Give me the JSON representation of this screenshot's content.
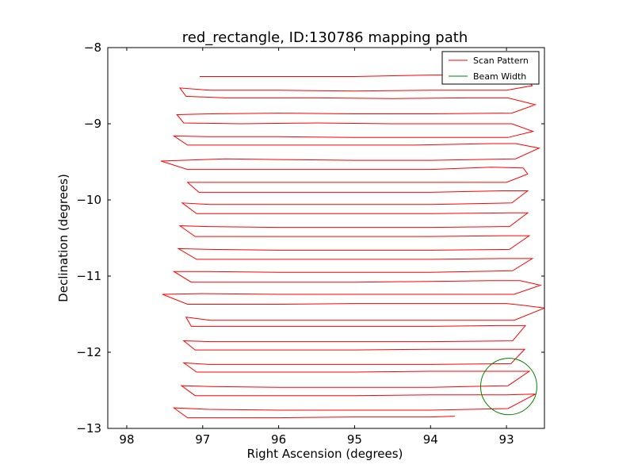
{
  "chart_data": {
    "type": "line",
    "title": "red_rectangle, ID:130786 mapping path",
    "xlabel": "Right Ascension (degrees)",
    "ylabel": "Declination (degrees)",
    "xlim": [
      98.25,
      92.5
    ],
    "ylim": [
      -13,
      -8
    ],
    "x_inverted": true,
    "x_ticks": [
      98,
      97,
      96,
      95,
      94,
      93
    ],
    "x_tick_labels": [
      "98",
      "97",
      "96",
      "95",
      "94",
      "93"
    ],
    "y_ticks": [
      -8,
      -9,
      -10,
      -11,
      -12,
      -13
    ],
    "y_tick_labels": [
      "−8",
      "−9",
      "−10",
      "−11",
      "−12",
      "−13"
    ],
    "grid": false,
    "legend": {
      "position": "top-right",
      "entries": [
        {
          "label": "Scan Pattern",
          "color": "#ff0000"
        },
        {
          "label": "Beam Width",
          "color": "#008000"
        }
      ]
    },
    "series": [
      {
        "name": "Scan Pattern",
        "color": "#ff0000",
        "x": [
          97.04,
          96.0,
          95.0,
          94.0,
          93.0,
          92.78,
          92.66,
          93.0,
          94.0,
          95.0,
          96.0,
          96.9,
          97.3,
          97.22,
          96.7,
          95.5,
          94.5,
          93.5,
          92.98,
          92.62,
          92.93,
          94.0,
          95.0,
          96.0,
          96.88,
          97.34,
          97.25,
          96.5,
          95.5,
          94.5,
          93.5,
          92.93,
          92.65,
          92.98,
          94.0,
          95.0,
          96.0,
          96.92,
          97.38,
          97.2,
          96.2,
          95.2,
          94.2,
          93.2,
          92.88,
          92.57,
          92.88,
          94.0,
          95.0,
          96.0,
          96.7,
          97.55,
          97.2,
          96.0,
          95.0,
          94.0,
          93.2,
          92.78,
          92.72,
          93.0,
          94.0,
          95.0,
          96.0,
          96.85,
          97.2,
          97.05,
          96.0,
          95.0,
          94.0,
          93.05,
          92.72,
          92.93,
          94.0,
          95.0,
          96.0,
          96.9,
          97.27,
          97.08,
          96.0,
          95.0,
          94.0,
          93.0,
          92.72,
          92.96,
          94.0,
          95.0,
          96.0,
          96.92,
          97.3,
          97.1,
          96.0,
          95.0,
          94.0,
          93.0,
          92.7,
          92.96,
          94.0,
          95.0,
          96.0,
          96.9,
          97.32,
          97.08,
          96.0,
          95.0,
          94.0,
          93.05,
          92.66,
          92.92,
          94.0,
          95.0,
          96.0,
          96.95,
          97.38,
          97.15,
          96.0,
          95.0,
          94.0,
          93.2,
          92.82,
          92.55,
          92.9,
          94.0,
          95.0,
          96.0,
          97.0,
          97.53,
          97.2,
          96.0,
          95.0,
          94.0,
          93.0,
          92.81,
          92.5,
          92.9,
          94.0,
          95.0,
          96.0,
          96.9,
          97.22,
          97.15,
          96.0,
          95.0,
          94.0,
          93.1,
          92.75,
          92.92,
          94.0,
          95.0,
          96.0,
          96.9,
          97.25,
          97.1,
          96.0,
          95.0,
          94.0,
          93.0,
          92.76,
          92.94,
          94.0,
          95.0,
          96.0,
          96.92,
          97.25,
          97.08,
          96.0,
          95.0,
          94.0,
          93.0,
          92.7,
          92.98,
          94.0,
          95.0,
          96.0,
          96.9,
          97.28,
          97.1,
          96.0,
          95.0,
          94.0,
          93.0,
          92.62,
          92.98,
          94.0,
          95.0,
          96.0,
          96.92,
          97.38,
          97.2,
          96.0,
          95.0,
          94.0,
          93.68
        ],
        "y": [
          -8.38,
          -8.38,
          -8.38,
          -8.36,
          -8.36,
          -8.38,
          -8.5,
          -8.56,
          -8.56,
          -8.57,
          -8.56,
          -8.56,
          -8.53,
          -8.64,
          -8.66,
          -8.66,
          -8.67,
          -8.66,
          -8.66,
          -8.75,
          -8.86,
          -8.87,
          -8.87,
          -8.86,
          -8.87,
          -8.88,
          -8.99,
          -9.0,
          -8.99,
          -9.0,
          -9.0,
          -9.0,
          -9.1,
          -9.18,
          -9.18,
          -9.18,
          -9.17,
          -9.17,
          -9.16,
          -9.28,
          -9.28,
          -9.28,
          -9.28,
          -9.26,
          -9.26,
          -9.32,
          -9.46,
          -9.48,
          -9.48,
          -9.47,
          -9.46,
          -9.49,
          -9.6,
          -9.6,
          -9.6,
          -9.6,
          -9.57,
          -9.58,
          -9.66,
          -9.77,
          -9.77,
          -9.77,
          -9.77,
          -9.77,
          -9.77,
          -9.9,
          -9.9,
          -9.9,
          -9.9,
          -9.88,
          -9.88,
          -10.04,
          -10.06,
          -10.06,
          -10.06,
          -10.06,
          -10.04,
          -10.18,
          -10.18,
          -10.18,
          -10.18,
          -10.17,
          -10.17,
          -10.35,
          -10.36,
          -10.36,
          -10.36,
          -10.35,
          -10.34,
          -10.48,
          -10.48,
          -10.48,
          -10.48,
          -10.47,
          -10.47,
          -10.65,
          -10.66,
          -10.66,
          -10.66,
          -10.65,
          -10.64,
          -10.78,
          -10.78,
          -10.78,
          -10.78,
          -10.77,
          -10.77,
          -10.93,
          -10.95,
          -10.95,
          -10.95,
          -10.94,
          -10.94,
          -11.08,
          -11.08,
          -11.08,
          -11.07,
          -11.06,
          -11.06,
          -11.12,
          -11.24,
          -11.24,
          -11.24,
          -11.24,
          -11.23,
          -11.24,
          -11.37,
          -11.37,
          -11.36,
          -11.36,
          -11.36,
          -11.38,
          -11.42,
          -11.58,
          -11.58,
          -11.58,
          -11.58,
          -11.58,
          -11.54,
          -11.66,
          -11.66,
          -11.66,
          -11.66,
          -11.65,
          -11.65,
          -11.85,
          -11.86,
          -11.86,
          -11.86,
          -11.86,
          -11.85,
          -11.97,
          -11.97,
          -11.97,
          -11.96,
          -11.96,
          -11.96,
          -12.15,
          -12.16,
          -12.16,
          -12.16,
          -12.16,
          -12.14,
          -12.26,
          -12.26,
          -12.26,
          -12.25,
          -12.25,
          -12.25,
          -12.44,
          -12.46,
          -12.46,
          -12.46,
          -12.45,
          -12.44,
          -12.57,
          -12.57,
          -12.57,
          -12.56,
          -12.56,
          -12.55,
          -12.74,
          -12.76,
          -12.76,
          -12.76,
          -12.75,
          -12.73,
          -12.86,
          -12.86,
          -12.85,
          -12.85,
          -12.84
        ]
      },
      {
        "name": "Beam Width",
        "color": "#008000",
        "shape": "circle",
        "center": [
          92.97,
          -12.45
        ],
        "radius_deg": 0.37
      }
    ]
  }
}
